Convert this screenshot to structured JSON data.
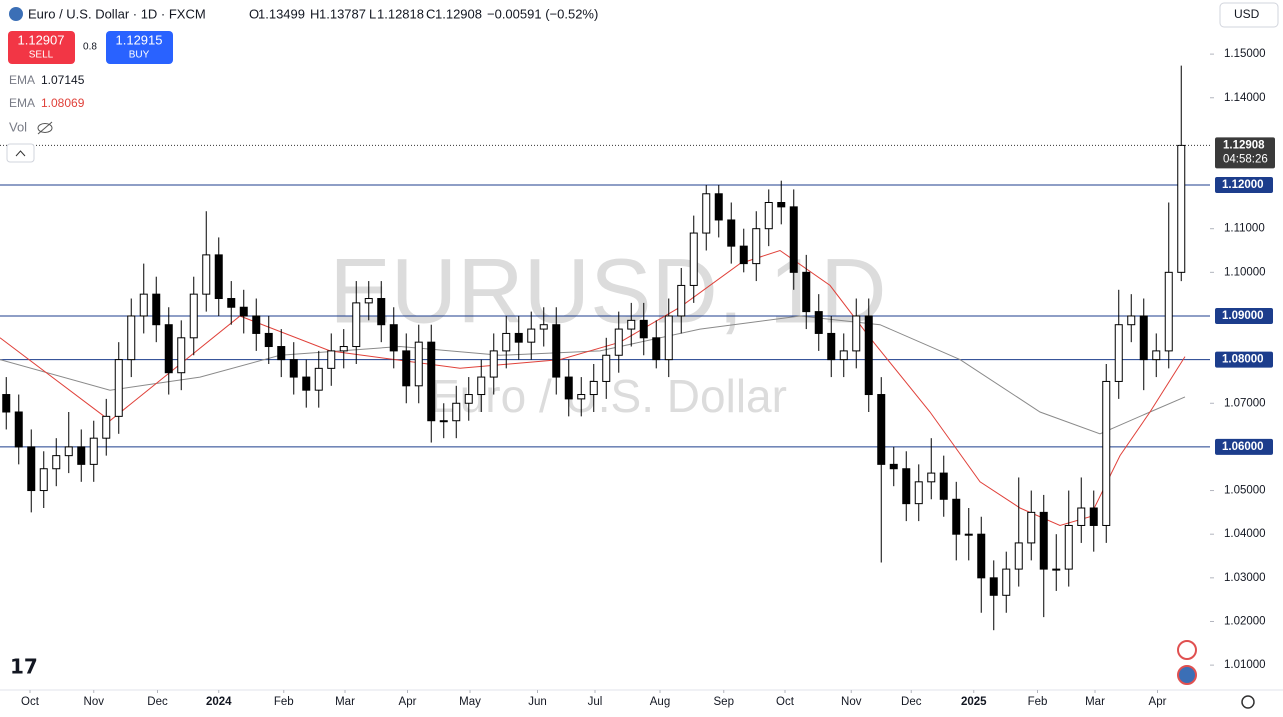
{
  "header": {
    "symbol": "Euro / U.S. Dollar · 1D · FXCM",
    "open_label": "O",
    "open": "1.13499",
    "high_label": "H",
    "high": "1.13787",
    "low_label": "L",
    "low": "1.12818",
    "close_label": "C",
    "close": "1.12908",
    "change": "−0.00591 (−0.52%)",
    "sell_price": "1.12907",
    "sell": "SELL",
    "spread": "0.8",
    "buy_price": "1.12915",
    "buy": "BUY",
    "currency": "USD",
    "vol": "Vol"
  },
  "chart_data": {
    "type": "candlestick",
    "watermark_title": "EURUSD, 1D",
    "watermark_subtitle": "Euro / U.S. Dollar",
    "up_color": "#ffffff",
    "down_color": "#000000",
    "ohlc": [
      [
        1.072,
        1.076,
        1.064,
        1.068
      ],
      [
        1.068,
        1.072,
        1.056,
        1.06
      ],
      [
        1.06,
        1.064,
        1.045,
        1.05
      ],
      [
        1.05,
        1.059,
        1.046,
        1.055
      ],
      [
        1.055,
        1.062,
        1.051,
        1.058
      ],
      [
        1.058,
        1.068,
        1.054,
        1.06
      ],
      [
        1.06,
        1.064,
        1.052,
        1.056
      ],
      [
        1.056,
        1.066,
        1.052,
        1.062
      ],
      [
        1.062,
        1.071,
        1.058,
        1.067
      ],
      [
        1.067,
        1.084,
        1.063,
        1.08
      ],
      [
        1.08,
        1.094,
        1.076,
        1.09
      ],
      [
        1.09,
        1.102,
        1.086,
        1.095
      ],
      [
        1.095,
        1.099,
        1.084,
        1.088
      ],
      [
        1.088,
        1.092,
        1.072,
        1.077
      ],
      [
        1.077,
        1.089,
        1.073,
        1.085
      ],
      [
        1.085,
        1.099,
        1.081,
        1.095
      ],
      [
        1.095,
        1.114,
        1.091,
        1.104
      ],
      [
        1.104,
        1.108,
        1.09,
        1.094
      ],
      [
        1.094,
        1.098,
        1.088,
        1.092
      ],
      [
        1.092,
        1.096,
        1.086,
        1.09
      ],
      [
        1.09,
        1.094,
        1.082,
        1.086
      ],
      [
        1.086,
        1.09,
        1.079,
        1.083
      ],
      [
        1.083,
        1.087,
        1.076,
        1.08
      ],
      [
        1.08,
        1.084,
        1.072,
        1.076
      ],
      [
        1.076,
        1.08,
        1.069,
        1.073
      ],
      [
        1.073,
        1.082,
        1.069,
        1.078
      ],
      [
        1.078,
        1.086,
        1.074,
        1.082
      ],
      [
        1.082,
        1.087,
        1.078,
        1.083
      ],
      [
        1.083,
        1.098,
        1.079,
        1.093
      ],
      [
        1.093,
        1.098,
        1.089,
        1.094
      ],
      [
        1.094,
        1.098,
        1.084,
        1.088
      ],
      [
        1.088,
        1.092,
        1.078,
        1.082
      ],
      [
        1.082,
        1.086,
        1.07,
        1.074
      ],
      [
        1.074,
        1.088,
        1.07,
        1.084
      ],
      [
        1.084,
        1.088,
        1.061,
        1.066
      ],
      [
        1.066,
        1.07,
        1.062,
        1.066
      ],
      [
        1.066,
        1.074,
        1.062,
        1.07
      ],
      [
        1.07,
        1.076,
        1.066,
        1.072
      ],
      [
        1.072,
        1.08,
        1.068,
        1.076
      ],
      [
        1.076,
        1.086,
        1.072,
        1.082
      ],
      [
        1.082,
        1.09,
        1.078,
        1.086
      ],
      [
        1.086,
        1.09,
        1.08,
        1.084
      ],
      [
        1.084,
        1.091,
        1.08,
        1.087
      ],
      [
        1.087,
        1.092,
        1.083,
        1.088
      ],
      [
        1.088,
        1.092,
        1.072,
        1.076
      ],
      [
        1.076,
        1.08,
        1.067,
        1.071
      ],
      [
        1.071,
        1.076,
        1.067,
        1.072
      ],
      [
        1.072,
        1.079,
        1.068,
        1.075
      ],
      [
        1.075,
        1.085,
        1.071,
        1.081
      ],
      [
        1.081,
        1.091,
        1.077,
        1.087
      ],
      [
        1.087,
        1.093,
        1.083,
        1.089
      ],
      [
        1.089,
        1.093,
        1.081,
        1.085
      ],
      [
        1.085,
        1.089,
        1.078,
        1.08
      ],
      [
        1.08,
        1.094,
        1.076,
        1.09
      ],
      [
        1.09,
        1.101,
        1.086,
        1.097
      ],
      [
        1.097,
        1.113,
        1.093,
        1.109
      ],
      [
        1.109,
        1.12,
        1.105,
        1.118
      ],
      [
        1.118,
        1.12,
        1.108,
        1.112
      ],
      [
        1.112,
        1.116,
        1.102,
        1.106
      ],
      [
        1.106,
        1.11,
        1.1,
        1.102
      ],
      [
        1.102,
        1.114,
        1.098,
        1.11
      ],
      [
        1.11,
        1.119,
        1.106,
        1.116
      ],
      [
        1.116,
        1.121,
        1.111,
        1.115
      ],
      [
        1.115,
        1.119,
        1.096,
        1.1
      ],
      [
        1.1,
        1.104,
        1.087,
        1.091
      ],
      [
        1.091,
        1.095,
        1.082,
        1.086
      ],
      [
        1.086,
        1.09,
        1.076,
        1.08
      ],
      [
        1.08,
        1.086,
        1.076,
        1.082
      ],
      [
        1.082,
        1.094,
        1.078,
        1.09
      ],
      [
        1.09,
        1.094,
        1.068,
        1.072
      ],
      [
        1.072,
        1.076,
        1.0335,
        1.056
      ],
      [
        1.056,
        1.06,
        1.051,
        1.055
      ],
      [
        1.055,
        1.059,
        1.043,
        1.047
      ],
      [
        1.047,
        1.056,
        1.043,
        1.052
      ],
      [
        1.052,
        1.062,
        1.048,
        1.054
      ],
      [
        1.054,
        1.058,
        1.044,
        1.048
      ],
      [
        1.048,
        1.052,
        1.034,
        1.04
      ],
      [
        1.04,
        1.046,
        1.034,
        1.04
      ],
      [
        1.04,
        1.044,
        1.022,
        1.03
      ],
      [
        1.03,
        1.034,
        1.018,
        1.026
      ],
      [
        1.026,
        1.036,
        1.022,
        1.032
      ],
      [
        1.032,
        1.053,
        1.028,
        1.038
      ],
      [
        1.038,
        1.05,
        1.034,
        1.045
      ],
      [
        1.045,
        1.049,
        1.021,
        1.032
      ],
      [
        1.032,
        1.04,
        1.027,
        1.032
      ],
      [
        1.032,
        1.05,
        1.028,
        1.042
      ],
      [
        1.042,
        1.053,
        1.038,
        1.046
      ],
      [
        1.046,
        1.05,
        1.036,
        1.042
      ],
      [
        1.042,
        1.079,
        1.038,
        1.075
      ],
      [
        1.075,
        1.096,
        1.071,
        1.088
      ],
      [
        1.088,
        1.095,
        1.084,
        1.09
      ],
      [
        1.09,
        1.094,
        1.073,
        1.08
      ],
      [
        1.08,
        1.086,
        1.076,
        1.082
      ],
      [
        1.082,
        1.116,
        1.078,
        1.1
      ],
      [
        1.1,
        1.14737,
        1.098,
        1.12908
      ]
    ],
    "xlim": [
      -0.5,
      96.3
    ],
    "xticks": [
      {
        "value": 1.9,
        "label": "Oct"
      },
      {
        "value": 7.0,
        "label": "Nov"
      },
      {
        "value": 12.1,
        "label": "Dec"
      },
      {
        "value": 17.0,
        "label": "2024"
      },
      {
        "value": 22.2,
        "label": "Feb"
      },
      {
        "value": 27.1,
        "label": "Mar"
      },
      {
        "value": 32.1,
        "label": "Apr"
      },
      {
        "value": 37.1,
        "label": "May"
      },
      {
        "value": 42.5,
        "label": "Jun"
      },
      {
        "value": 47.1,
        "label": "Jul"
      },
      {
        "value": 52.3,
        "label": "Aug"
      },
      {
        "value": 57.4,
        "label": "Sep"
      },
      {
        "value": 62.3,
        "label": "Oct"
      },
      {
        "value": 67.6,
        "label": "Nov"
      },
      {
        "value": 72.4,
        "label": "Dec"
      },
      {
        "value": 77.4,
        "label": "2025"
      },
      {
        "value": 82.5,
        "label": "Feb"
      },
      {
        "value": 87.1,
        "label": "Mar"
      },
      {
        "value": 92.1,
        "label": "Apr"
      }
    ],
    "ylim": [
      1.0043,
      1.1624
    ],
    "yticks": [
      {
        "value": 1.15,
        "label": "1.15000"
      },
      {
        "value": 1.14,
        "label": "1.14000"
      },
      {
        "value": 1.11,
        "label": "1.11000"
      },
      {
        "value": 1.1,
        "label": "1.10000"
      },
      {
        "value": 1.07,
        "label": "1.07000"
      },
      {
        "value": 1.05,
        "label": "1.05000"
      },
      {
        "value": 1.04,
        "label": "1.04000"
      },
      {
        "value": 1.03,
        "label": "1.03000"
      },
      {
        "value": 1.02,
        "label": "1.02000"
      },
      {
        "value": 1.01,
        "label": "1.01000"
      }
    ],
    "levels": [
      {
        "value": 1.12,
        "label": "1.12000"
      },
      {
        "value": 1.09,
        "label": "1.09000"
      },
      {
        "value": 1.08,
        "label": "1.08000"
      },
      {
        "value": 1.06,
        "label": "1.06000"
      }
    ],
    "level_color": "#1c3d8c",
    "last_price": 1.12908,
    "countdown": "04:58:26",
    "series": [
      {
        "name": "EMA",
        "color": "#8a8a8a",
        "x": [
          -0.5,
          8.3,
          15.5,
          21.9,
          31.5,
          39.5,
          47.5,
          55.5,
          63.5,
          69.9,
          76.3,
          82.7,
          87.5,
          91.5,
          94.3
        ],
        "values": [
          1.08,
          1.073,
          1.076,
          1.081,
          1.083,
          1.081,
          1.082,
          1.087,
          1.09,
          1.088,
          1.08,
          1.068,
          1.063,
          1.068,
          1.07145
        ]
      },
      {
        "name": "EMA",
        "color": "#e0413a",
        "x": [
          -0.5,
          8.3,
          18.7,
          25.9,
          36.3,
          44.3,
          49.1,
          53.9,
          58.7,
          61.9,
          65.9,
          69.1,
          73.9,
          77.9,
          81.1,
          84.3,
          86.7,
          89.1,
          91.5,
          94.3
        ],
        "values": [
          1.085,
          1.066,
          1.09,
          1.082,
          1.078,
          1.08,
          1.084,
          1.092,
          1.102,
          1.105,
          1.097,
          1.085,
          1.068,
          1.052,
          1.046,
          1.042,
          1.044,
          1.058,
          1.068,
          1.08069
        ]
      }
    ]
  }
}
